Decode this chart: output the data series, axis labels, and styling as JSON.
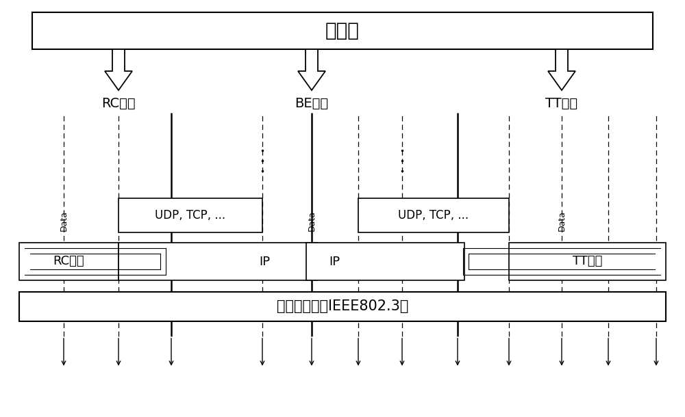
{
  "title": "应用层",
  "bg_color": "#ffffff",
  "text_color": "#000000",
  "rc_label": "RC流量",
  "be_label": "BE流量",
  "tt_label": "TT流量",
  "rc_service": "RC服务",
  "tt_service": "TT服务",
  "udp_tcp": "UDP, TCP, ...",
  "ip_left": "IP",
  "ip_right": "IP",
  "ethernet_label": "标准以太网（IEEE802.3）",
  "data_label": "Data",
  "fig_width": 10.0,
  "fig_height": 6.1
}
